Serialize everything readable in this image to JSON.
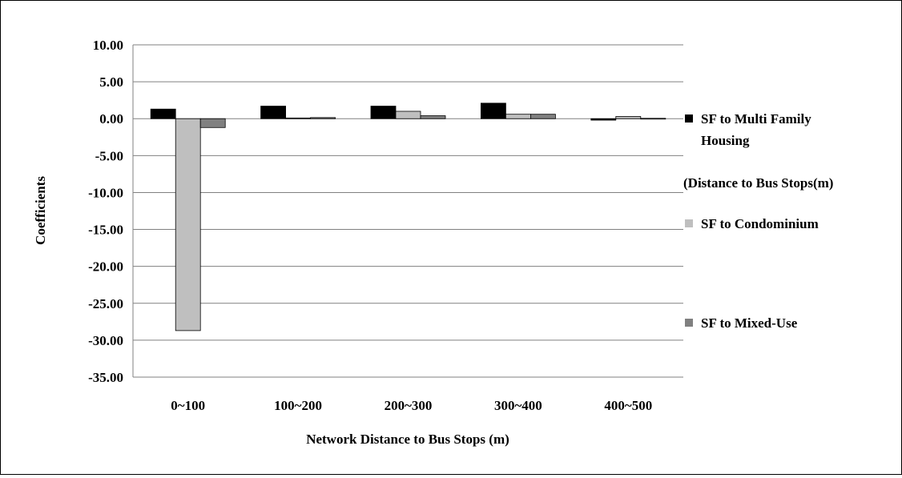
{
  "chart_data": {
    "type": "bar",
    "title": "",
    "xlabel": "Network Distance to Bus Stops (m)",
    "ylabel": "Coefficients",
    "ylim": [
      -35,
      10
    ],
    "ytick_step": 5,
    "ytick_labels": [
      "10.00",
      "5.00",
      "0.00",
      "-5.00",
      "-10.00",
      "-15.00",
      "-20.00",
      "-25.00",
      "-30.00",
      "-35.00"
    ],
    "categories": [
      "0~100",
      "100~200",
      "200~300",
      "300~400",
      "400~500"
    ],
    "grid": true,
    "legend_position": "right",
    "series": [
      {
        "name": "SF to Multi Family Housing",
        "color": "#000000",
        "values": [
          1.3,
          1.7,
          1.7,
          2.1,
          -0.2
        ]
      },
      {
        "name": "SF to Condominium",
        "color": "#bfbfbf",
        "values": [
          -28.7,
          0.1,
          1.0,
          0.6,
          0.3
        ]
      },
      {
        "name": "SF to Mixed-Use",
        "color": "#808080",
        "values": [
          -1.2,
          0.15,
          0.4,
          0.6,
          0.05
        ]
      }
    ],
    "legend": {
      "entries": [
        {
          "label_lines": [
            "SF to Multi Family",
            "Housing"
          ],
          "color": "#000000"
        },
        {
          "label_lines": [
            "(Distance to Bus Stops(m)"
          ],
          "color": null
        },
        {
          "label_lines": [
            "SF to Condominium"
          ],
          "color": "#bfbfbf"
        },
        {
          "label_lines": [
            "SF to Mixed-Use"
          ],
          "color": "#808080"
        }
      ]
    }
  }
}
